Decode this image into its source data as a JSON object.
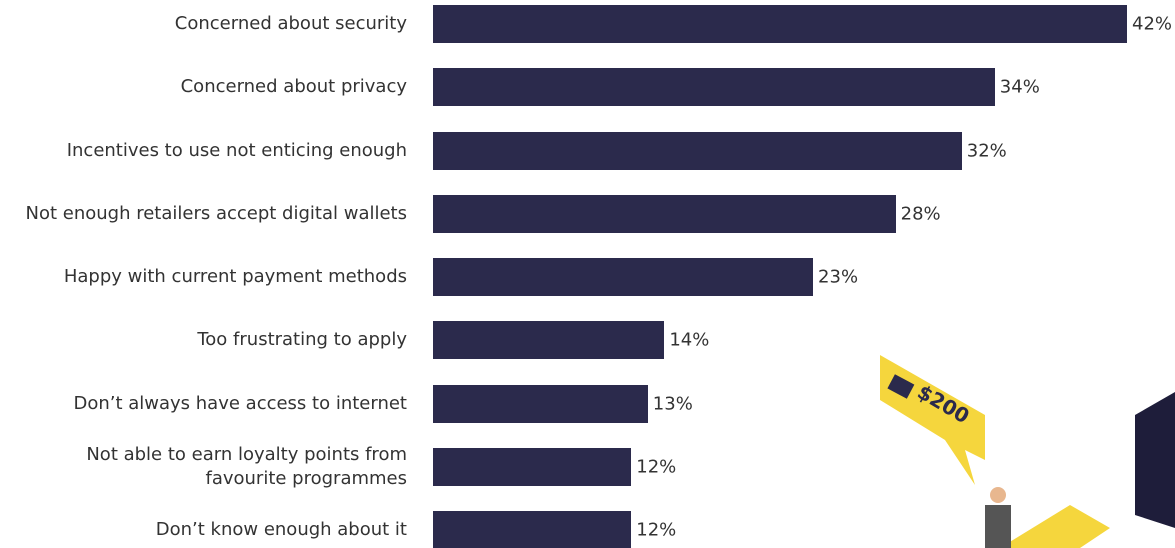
{
  "chart_data": {
    "type": "bar",
    "orientation": "horizontal",
    "color": "#2b2a4c",
    "categories": [
      "Concerned about security",
      "Concerned about privacy",
      "Incentives to use not enticing enough",
      "Not enough retailers accept digital wallets",
      "Happy with current payment methods",
      "Too frustrating to apply",
      "Don’t always have access to internet",
      "Not able to earn loyalty points from\nfavourite programmes",
      "Don’t know enough about it"
    ],
    "values": [
      42,
      34,
      32,
      28,
      23,
      14,
      13,
      12,
      12
    ],
    "value_labels": [
      "42%",
      "34%",
      "32%",
      "28%",
      "23%",
      "14%",
      "13%",
      "12%",
      "12%"
    ]
  },
  "illustration": {
    "tag": "$200"
  }
}
